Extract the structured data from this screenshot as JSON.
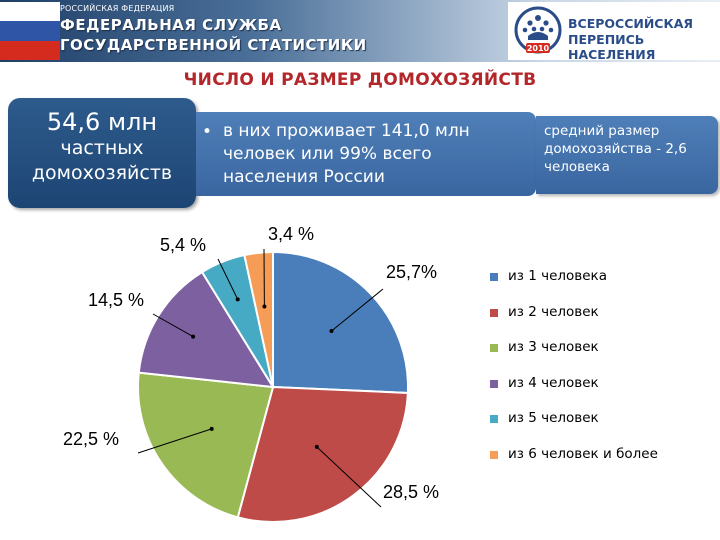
{
  "header": {
    "org_small": "РОССИЙСКАЯ ФЕДЕРАЦИЯ",
    "org_line1": "ФЕДЕРАЛЬНАЯ СЛУЖБА",
    "org_line2": "ГОСУДАРСТВЕННОЙ СТАТИСТИКИ",
    "census_line1": "ВСЕРОССИЙСКАЯ",
    "census_line2": "ПЕРЕПИСЬ НАСЕЛЕНИЯ",
    "census_year": "2010",
    "flag_colors": [
      "#ffffff",
      "#2f56a6",
      "#d52b1e"
    ],
    "census_brand_color": "#2a4d8a"
  },
  "title": "ЧИСЛО И РАЗМЕР ДОМОХОЗЯЙСТВ",
  "cards": {
    "count_main": "54,6 млн",
    "count_sub1": "частных",
    "count_sub2": "домохозяйств",
    "pop_bullet": "•",
    "pop_text": "в них проживает 141,0 млн человек или 99% всего населения России",
    "avg_text": "средний размер домохозяйства - 2,6 человека"
  },
  "chart_data": {
    "type": "pie",
    "categories": [
      "из 1 человека",
      "из 2 человек",
      "из 3 человек",
      "из 4 человек",
      "из 5 человек",
      "из 6 человек и более"
    ],
    "values": [
      25.7,
      28.5,
      22.5,
      14.5,
      5.4,
      3.4
    ],
    "labels": [
      "25,7%",
      "28,5 %",
      "22,5 %",
      "14,5 %",
      "5,4 %",
      "3,4 %"
    ],
    "colors": [
      "#4a7ebb",
      "#be4b48",
      "#98b954",
      "#7d60a0",
      "#46aac4",
      "#f59d56"
    ],
    "legend_position": "right",
    "start_angle": "12 o'clock, clockwise"
  }
}
